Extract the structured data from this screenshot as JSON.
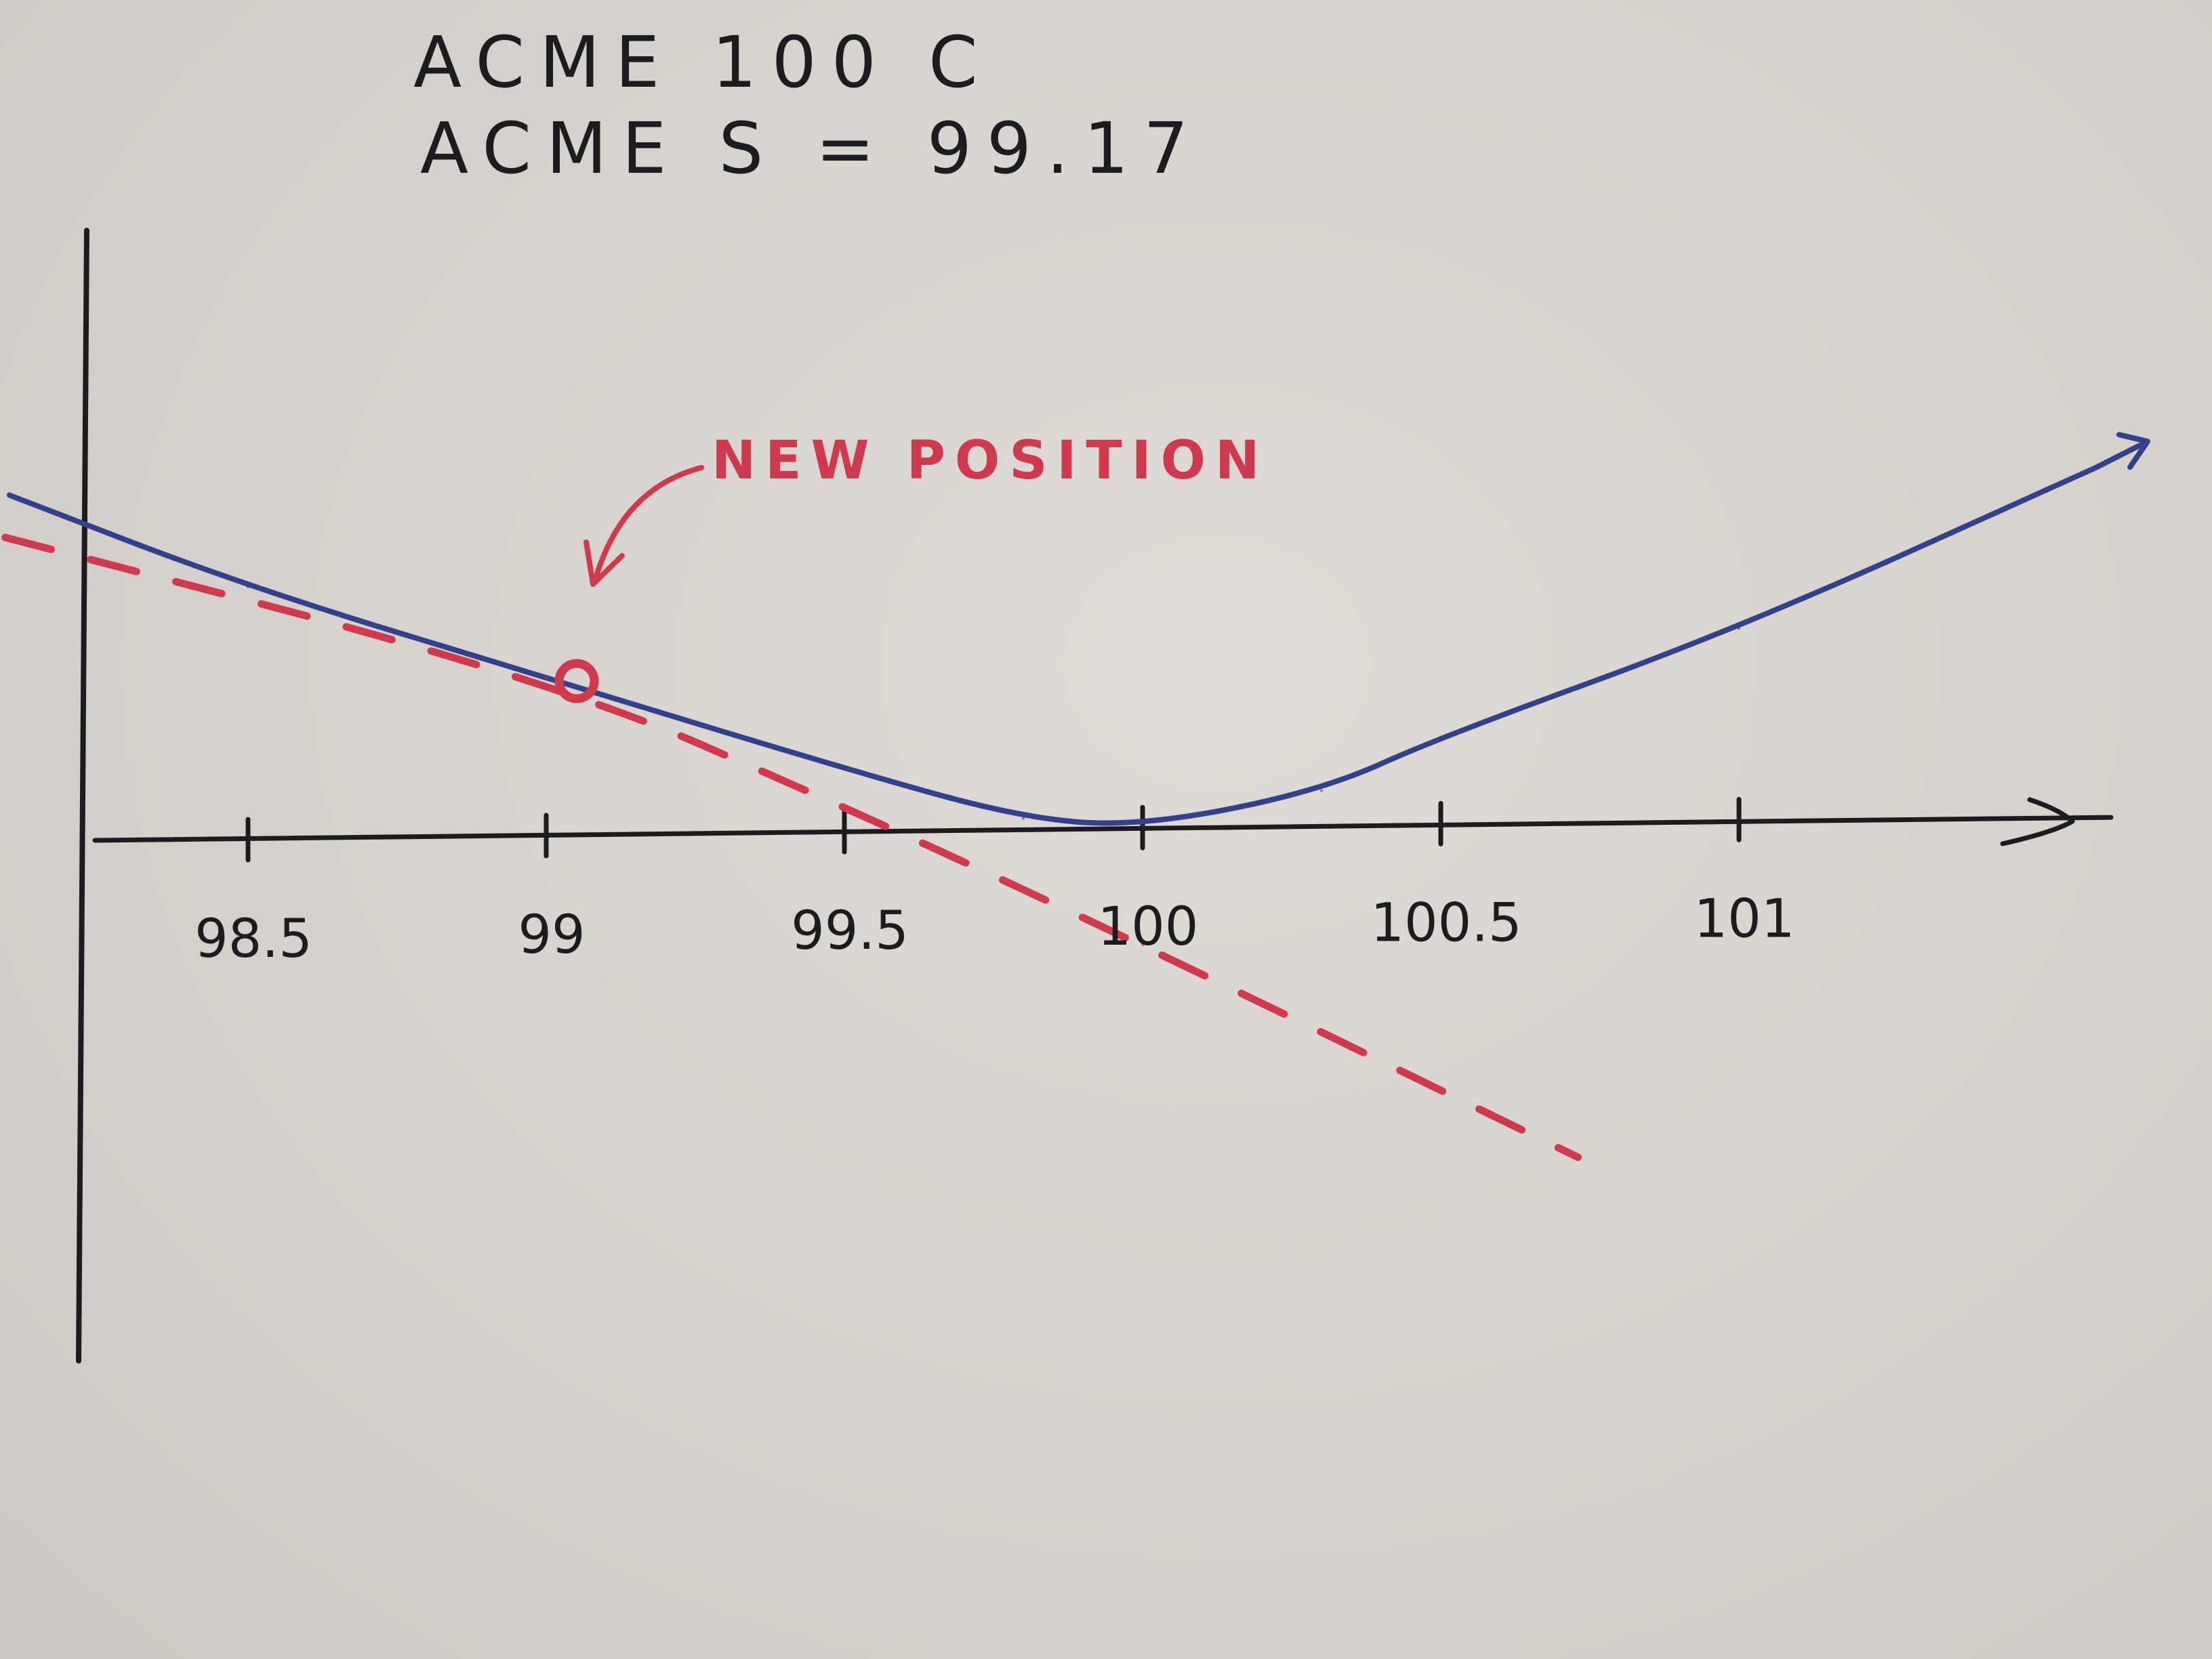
{
  "chart_data": {
    "type": "line",
    "title": "ACME 100 C",
    "subtitle": "ACME S = 99.17",
    "xlabel": "",
    "ylabel": "",
    "x_ticks": [
      "98.5",
      "99",
      "99.5",
      "100",
      "100.5",
      "101"
    ],
    "xlim": [
      98.0,
      102.0
    ],
    "ylim": [
      -1.0,
      1.0
    ],
    "grid": false,
    "series": [
      {
        "style": "solid",
        "color": "#33408a",
        "x": [
          98.1,
          98.5,
          99.0,
          99.5,
          99.8,
          100.0,
          100.3,
          100.5,
          101.0,
          101.6
        ],
        "y": [
          0.73,
          0.53,
          0.33,
          0.13,
          0.02,
          0.0,
          0.07,
          0.18,
          0.4,
          0.73
        ],
        "end_arrow": true
      },
      {
        "style": "dashed",
        "color": "#d03a4d",
        "x": [
          97.95,
          99.0,
          99.5,
          100.0,
          100.73
        ],
        "y": [
          0.69,
          0.33,
          0.05,
          -0.25,
          -0.71
        ]
      }
    ],
    "annotations": [
      {
        "text": "NEW POSITION",
        "x": 99.0,
        "y": 0.33,
        "color": "#d03a4d",
        "marker": "circle"
      }
    ]
  }
}
